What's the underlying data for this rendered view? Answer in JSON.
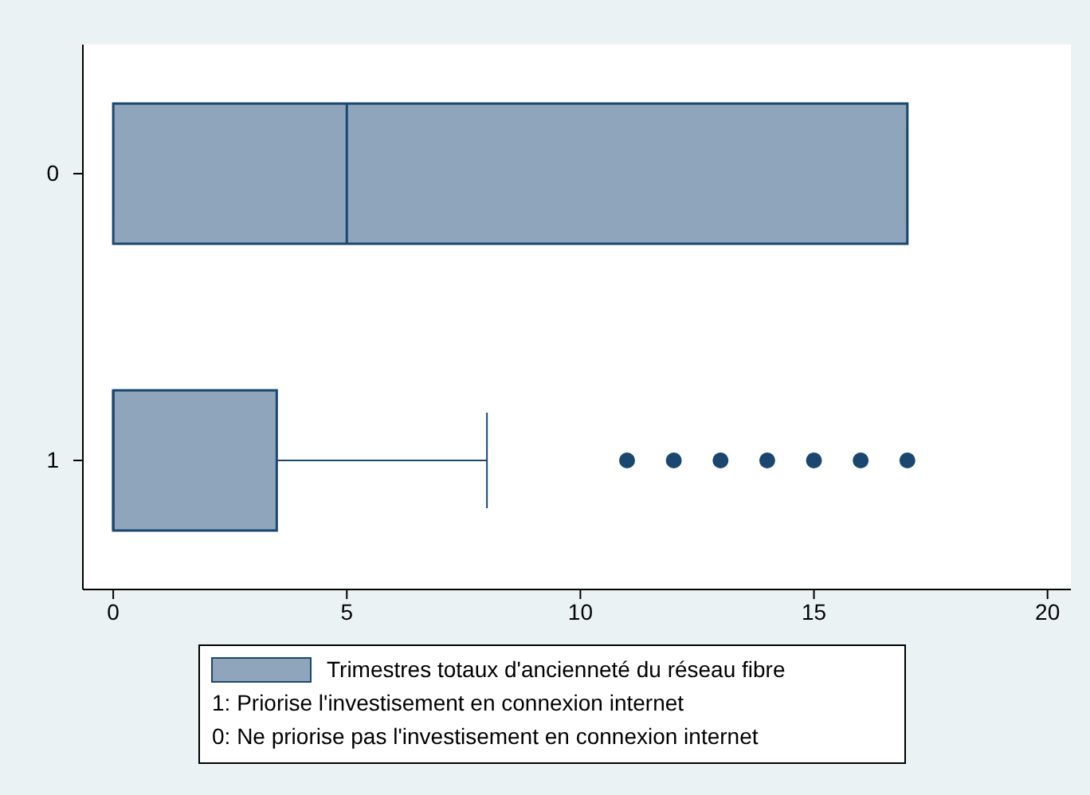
{
  "chart_data": {
    "type": "box",
    "orientation": "horizontal",
    "categories": [
      "0",
      "1"
    ],
    "series": [
      {
        "name": "Trimestres totaux d'ancienneté du réseau fibre",
        "color": "#8fa5bc",
        "boxes": [
          {
            "low": 0,
            "q1": 0,
            "median": 5,
            "q3": 17,
            "high": 17
          },
          {
            "low": 0,
            "q1": 0,
            "median": 0,
            "q3": 3.5,
            "high": 8,
            "outliers": [
              11,
              12,
              13,
              14,
              15,
              16,
              17
            ]
          }
        ]
      }
    ],
    "xlim": [
      -0.65,
      20.5
    ],
    "xticks": [
      0,
      5,
      10,
      15,
      20
    ],
    "grid": false,
    "legend": "bottom",
    "annotations": [
      "1: Priorise l'investisement en connexion internet",
      "0: Ne priorise pas l'investisement en connexion internet"
    ]
  }
}
